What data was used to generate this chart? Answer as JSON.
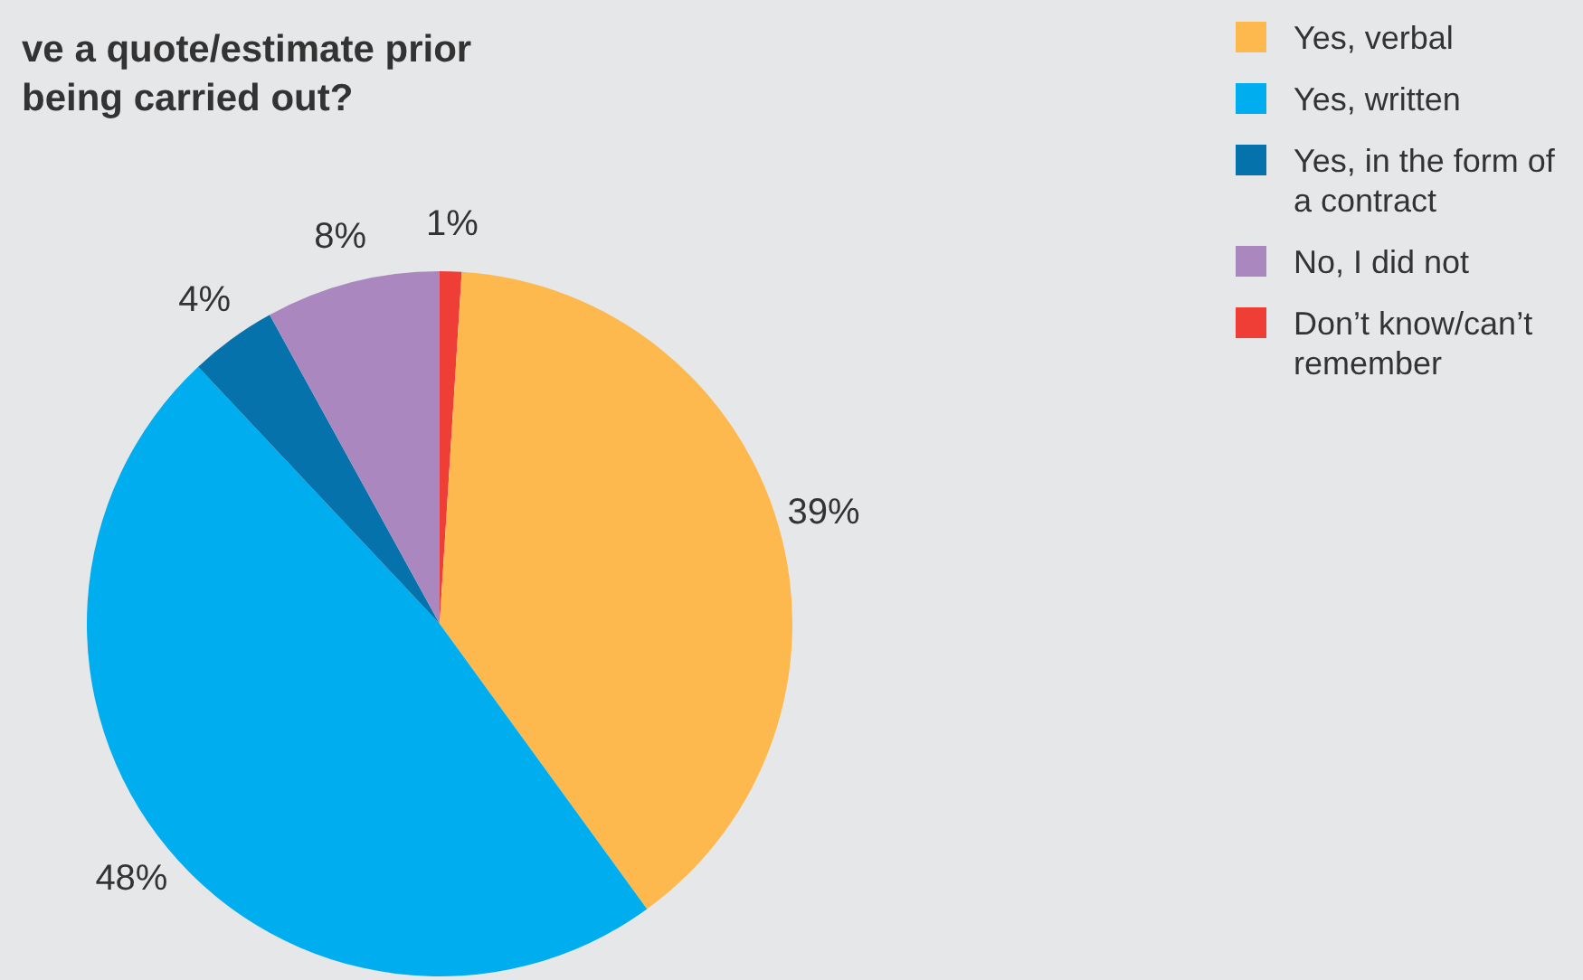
{
  "chart_data": {
    "type": "pie",
    "title": "ve a quote/estimate prior\nbeing carried out?",
    "categories": [
      "Yes, verbal",
      "Yes, written",
      "Yes, in the form of a contract",
      "No, I did not",
      "Don’t know/can’t remember"
    ],
    "values": [
      39,
      48,
      4,
      8,
      1
    ],
    "colors": [
      "#fdb94e",
      "#00adee",
      "#0572ab",
      "#ab87c0",
      "#ee3e36"
    ],
    "value_labels": [
      "39%",
      "48%",
      "4%",
      "8%",
      "1%"
    ],
    "legend": "top right"
  }
}
